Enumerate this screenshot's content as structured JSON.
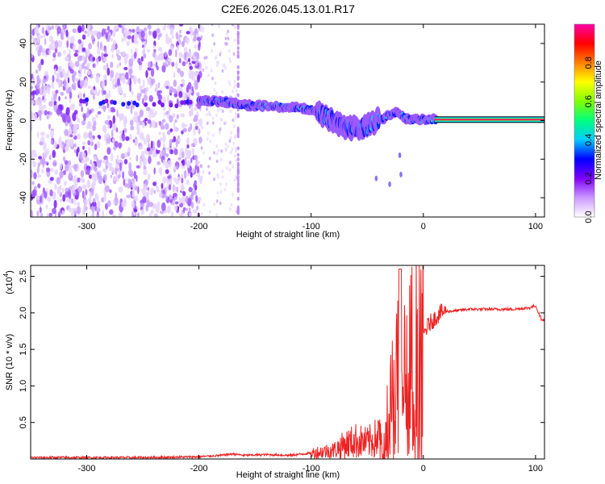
{
  "chart_data": [
    {
      "type": "heatmap",
      "title": "C2E6.2026.045.13.01.R17",
      "xlabel": "Height of straight line (km)",
      "ylabel": "Frequency (Hz)",
      "xlim": [
        -350,
        108
      ],
      "ylim": [
        -50,
        50
      ],
      "xticks": [
        -300,
        -200,
        -100,
        0,
        100
      ],
      "yticks": [
        -40,
        -20,
        0,
        20,
        40
      ],
      "colorbar": {
        "label": "Normalized spectral amplitude",
        "range": [
          0,
          1
        ],
        "ticks": [
          "0.0",
          "0.2",
          "0.4",
          "0.6",
          "0.8"
        ],
        "colors": [
          "#ffffff",
          "#cc99ff",
          "#8000ff",
          "#0000ff",
          "#00ccff",
          "#00ff80",
          "#80ff00",
          "#ffff00",
          "#ff8000",
          "#ff0000",
          "#ff00aa"
        ]
      },
      "ridge": {
        "x": [
          -300,
          -250,
          -215,
          -200,
          -180,
          -160,
          -140,
          -120,
          -100,
          -90,
          -80,
          -70,
          -60,
          -50,
          -40,
          -35,
          -30,
          -25,
          -20,
          -15,
          -10,
          -5,
          0,
          10,
          20,
          50,
          108
        ],
        "y": [
          10,
          9,
          8.5,
          10,
          10,
          8,
          7.5,
          7,
          6,
          3,
          0,
          -3,
          -4,
          -3,
          1,
          1,
          3,
          4,
          3,
          1,
          0.5,
          0.5,
          0.5,
          0.5,
          0.5,
          0.5,
          0.5
        ]
      },
      "noise_region_x": [
        -350,
        -198
      ],
      "sparse_region_x": [
        -198,
        -165
      ],
      "carrier_line": {
        "x": [
          10,
          108
        ],
        "y": 0.5
      }
    },
    {
      "type": "line",
      "xlabel": "Height of straight line (km)",
      "ylabel": "SNR (10 * v/v)",
      "y_multiplier": "(x10",
      "y_multiplier_exp": "4",
      "y_multiplier_close": ")",
      "xlim": [
        -350,
        108
      ],
      "ylim": [
        0,
        2.65
      ],
      "xticks": [
        -300,
        -200,
        -100,
        0,
        100
      ],
      "yticks": [
        0.5,
        1.0,
        1.5,
        2.0,
        2.5
      ],
      "series": [
        {
          "name": "SNR",
          "color": "#ee2222",
          "x": [
            -350,
            -300,
            -250,
            -200,
            -180,
            -170,
            -160,
            -140,
            -120,
            -100,
            -80,
            -70,
            -60,
            -50,
            -40,
            -35,
            -30,
            -25,
            -20,
            -15,
            -10,
            -5,
            0,
            5,
            10,
            15,
            20,
            30,
            40,
            60,
            80,
            95,
            100,
            105,
            108
          ],
          "y": [
            0.02,
            0.02,
            0.02,
            0.03,
            0.05,
            0.07,
            0.05,
            0.06,
            0.05,
            0.08,
            0.12,
            0.2,
            0.25,
            0.22,
            0.3,
            0.5,
            0.7,
            1.0,
            1.3,
            1.1,
            1.35,
            1.5,
            1.7,
            1.85,
            1.92,
            2.0,
            2.02,
            2.03,
            2.05,
            2.05,
            2.05,
            2.07,
            2.1,
            1.92,
            1.9
          ]
        }
      ]
    }
  ]
}
